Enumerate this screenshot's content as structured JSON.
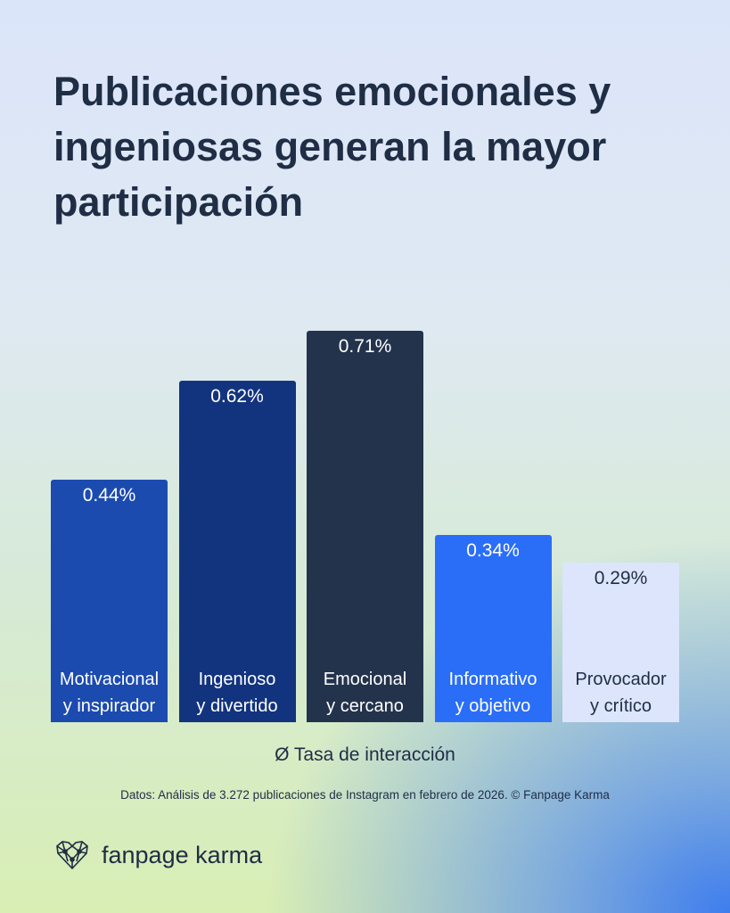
{
  "chart_data": {
    "type": "bar",
    "title": "Publicaciones emocionales y ingeniosas generan la mayor participación",
    "xlabel": "Ø Tasa de interacción",
    "ylabel": "",
    "categories": [
      "Motivacional y inspirador",
      "Ingenioso y divertido",
      "Emocional y cercano",
      "Informativo y objetivo",
      "Provocador y crítico"
    ],
    "category_lines": [
      [
        "Motivacional",
        "y inspirador"
      ],
      [
        "Ingenioso",
        "y divertido"
      ],
      [
        "Emocional",
        "y cercano"
      ],
      [
        "Informativo",
        "y objetivo"
      ],
      [
        "Provocador",
        "y crítico"
      ]
    ],
    "values": [
      0.44,
      0.62,
      0.71,
      0.34,
      0.29
    ],
    "data_labels": [
      "0.44%",
      "0.62%",
      "0.71%",
      "0.34%",
      "0.29%"
    ],
    "colors": [
      "#1c4bb0",
      "#12347f",
      "#24334c",
      "#2a6ef8",
      "#dce5fb"
    ],
    "text_colors": [
      "#ffffff",
      "#ffffff",
      "#ffffff",
      "#ffffff",
      "#1f2d45"
    ],
    "ylim": [
      0,
      0.71
    ],
    "grid": false,
    "legend": "none"
  },
  "source": "Datos: Análisis de 3.272 publicaciones de Instagram en febrero de 2026. © Fanpage Karma",
  "brand": {
    "name": "fanpage karma",
    "icon": "heart-network-icon"
  }
}
